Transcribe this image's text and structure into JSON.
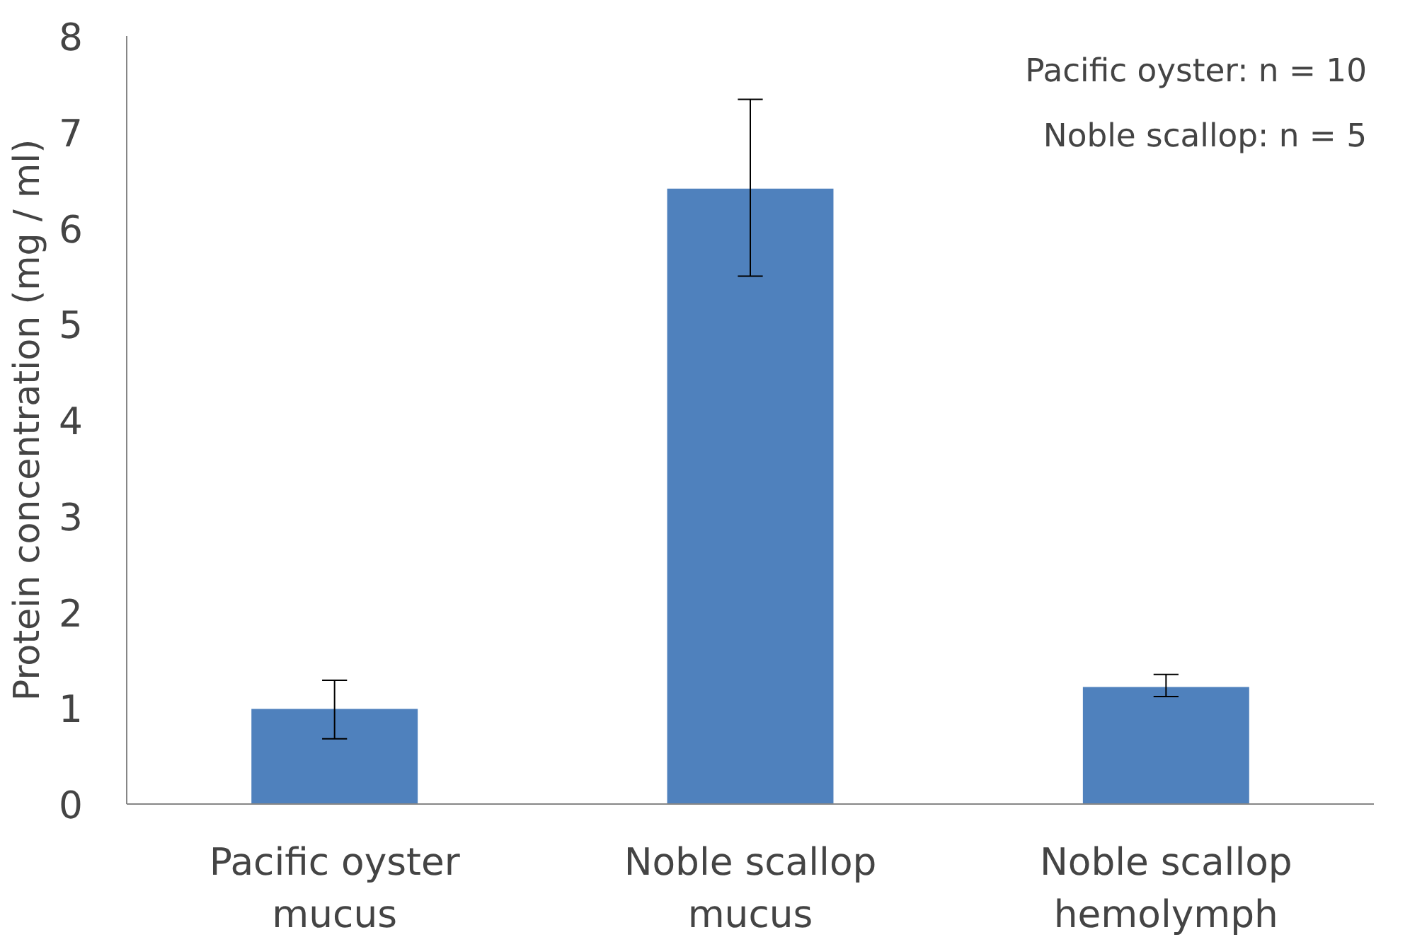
{
  "chart_data": {
    "type": "bar",
    "ylabel": "Protein concentration (mg / ml)",
    "categories": [
      "Pacific oyster mucus",
      "Noble scallop mucus",
      "Noble scallop hemolymph"
    ],
    "values": [
      0.99,
      6.41,
      1.22
    ],
    "errors": [
      [
        0.68,
        1.29
      ],
      [
        5.5,
        7.34
      ],
      [
        1.12,
        1.35
      ]
    ],
    "color": "#4f81bd",
    "ylim": [
      0,
      8
    ],
    "yticks": [
      0,
      1,
      2,
      3,
      4,
      5,
      6,
      7,
      8
    ],
    "grid": false,
    "annotations": [
      "Pacific oyster: n = 10",
      "Noble scallop: n = 5"
    ]
  }
}
